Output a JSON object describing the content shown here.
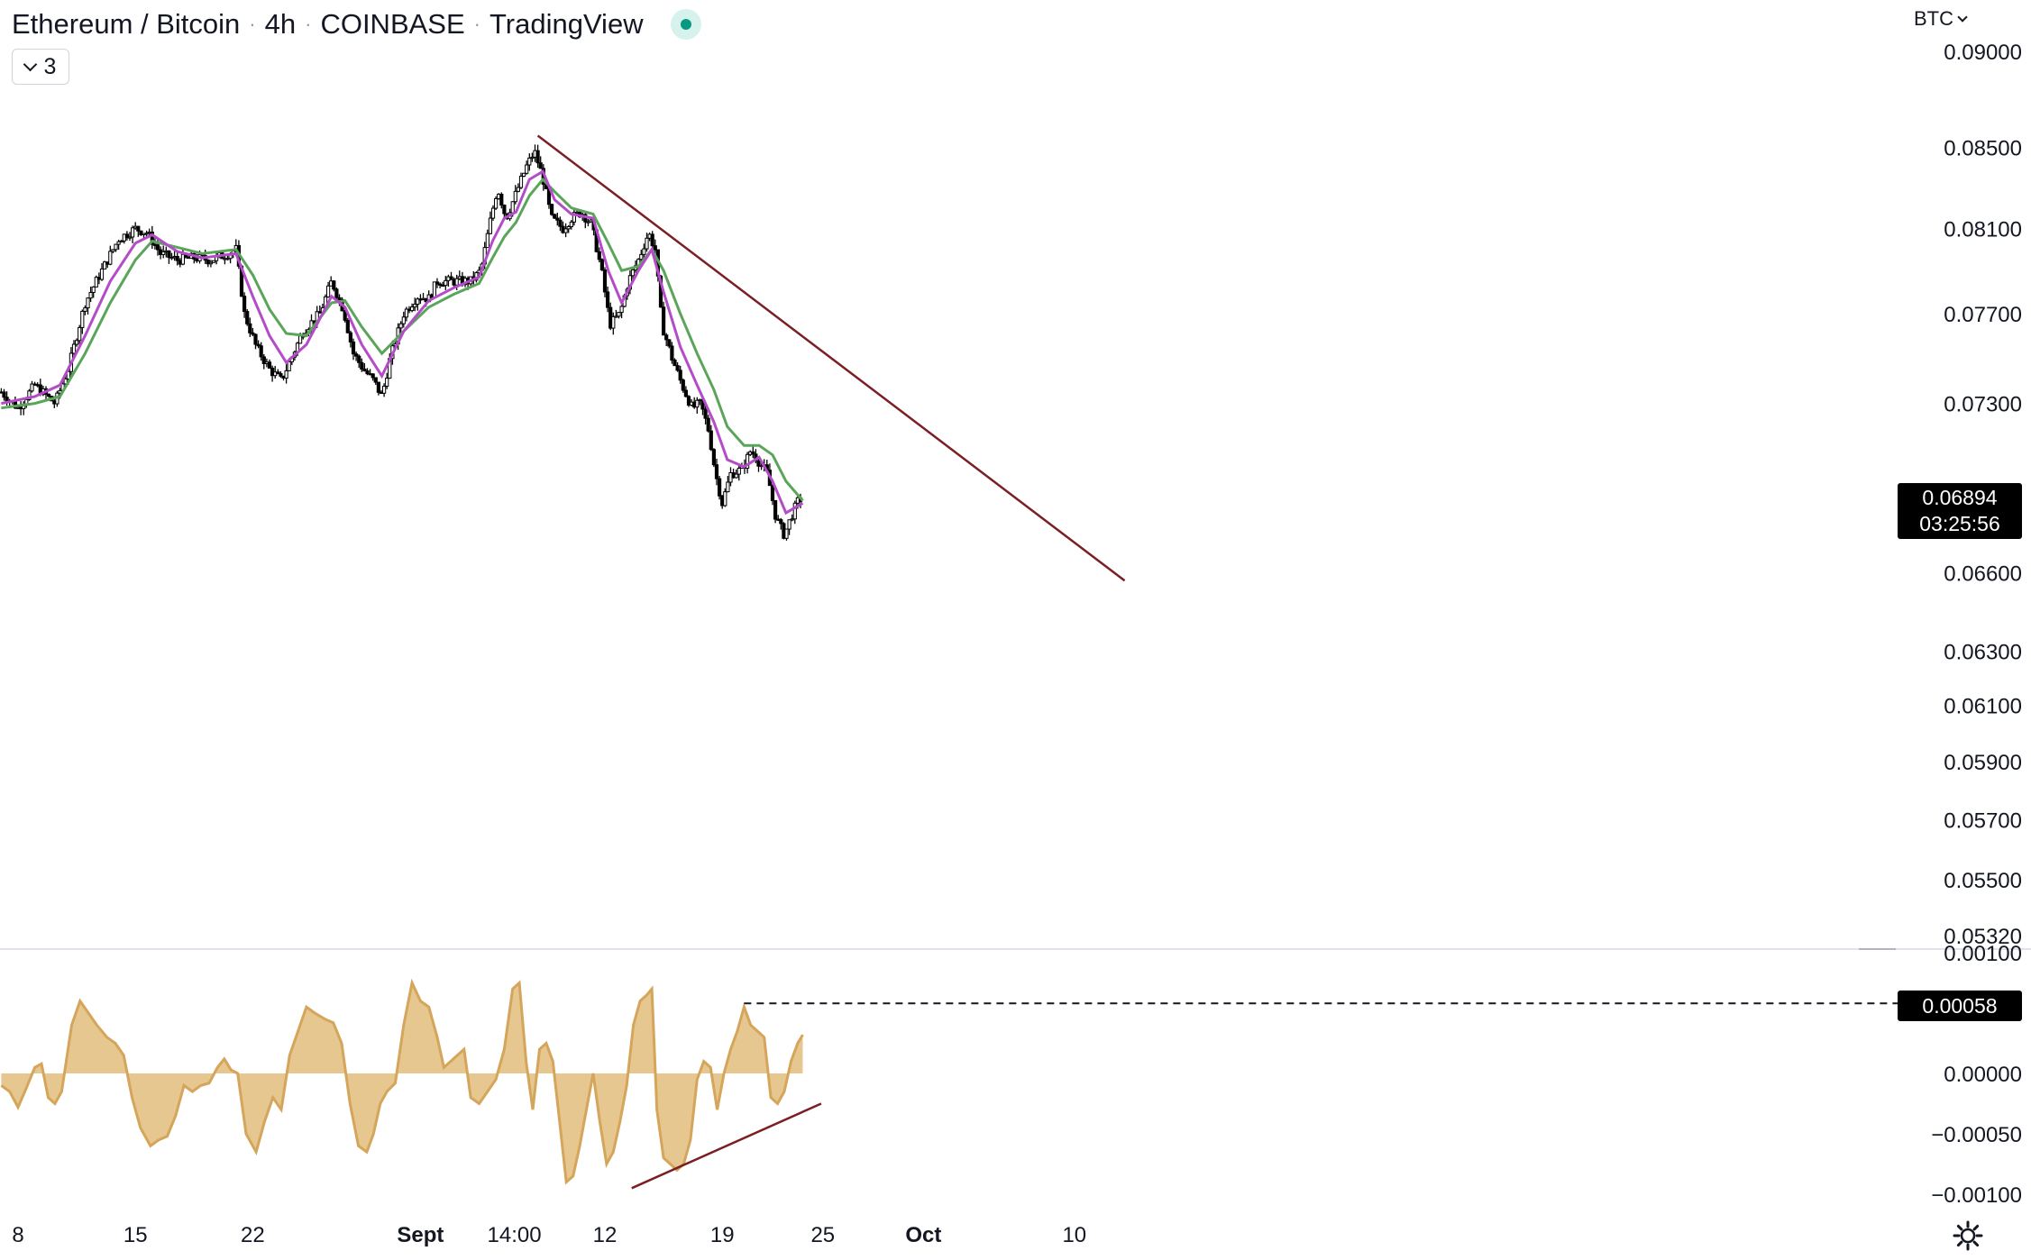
{
  "header": {
    "symbol": "Ethereum / Bitcoin",
    "interval": "4h",
    "exchange": "COINBASE",
    "source": "TradingView",
    "indicator_count": "3"
  },
  "currency_selector": "BTC",
  "last_price": {
    "value": "0.06894",
    "countdown": "03:25:56"
  },
  "oscillator_marker": "0.00058",
  "colors": {
    "candle": "#000000",
    "ema_fast": "#b44bc8",
    "ema_slow": "#5aa55a",
    "trendline": "#7b1f24",
    "oscillator_fill": "#e3c184",
    "oscillator_line": "#d4a55a",
    "live_dot": "#089981"
  },
  "chart_data": [
    {
      "type": "candlestick",
      "title": "",
      "price_axis": {
        "scale": "log",
        "ticks": [
          "0.09000",
          "0.08500",
          "0.08100",
          "0.07700",
          "0.07300",
          "0.06600",
          "0.06300",
          "0.06100",
          "0.05900",
          "0.05700",
          "0.05500",
          "0.05320"
        ]
      },
      "time_axis": {
        "range_days": [
          "Aug 7",
          "Oct 15"
        ],
        "ticks": [
          {
            "label": "8",
            "day": 8
          },
          {
            "label": "15",
            "day": 15
          },
          {
            "label": "22",
            "day": 22
          },
          {
            "label": "Sept",
            "day": 32,
            "bold": true
          },
          {
            "label": "14:00",
            "day": 37.6
          },
          {
            "label": "12",
            "day": 43
          },
          {
            "label": "19",
            "day": 50
          },
          {
            "label": "25",
            "day": 56
          },
          {
            "label": "Oct",
            "day": 62,
            "bold": true
          },
          {
            "label": "10",
            "day": 71
          }
        ]
      },
      "close_path": [
        [
          7.0,
          0.0735
        ],
        [
          8.0,
          0.0728
        ],
        [
          9.0,
          0.0738
        ],
        [
          10.2,
          0.073
        ],
        [
          11.0,
          0.0745
        ],
        [
          12.0,
          0.0775
        ],
        [
          13.0,
          0.079
        ],
        [
          14.0,
          0.0805
        ],
        [
          15.0,
          0.081
        ],
        [
          15.7,
          0.0808
        ],
        [
          16.5,
          0.0798
        ],
        [
          17.5,
          0.0795
        ],
        [
          18.5,
          0.0796
        ],
        [
          19.5,
          0.0795
        ],
        [
          20.5,
          0.0798
        ],
        [
          21.0,
          0.08
        ],
        [
          21.5,
          0.077
        ],
        [
          22.2,
          0.0755
        ],
        [
          23.0,
          0.0745
        ],
        [
          23.7,
          0.074
        ],
        [
          24.3,
          0.075
        ],
        [
          25.0,
          0.0762
        ],
        [
          26.0,
          0.077
        ],
        [
          26.7,
          0.0785
        ],
        [
          27.4,
          0.0772
        ],
        [
          28.0,
          0.0752
        ],
        [
          28.6,
          0.0745
        ],
        [
          29.2,
          0.074
        ],
        [
          29.7,
          0.0733
        ],
        [
          30.2,
          0.075
        ],
        [
          31.0,
          0.077
        ],
        [
          31.8,
          0.0778
        ],
        [
          32.5,
          0.0777
        ],
        [
          33.0,
          0.0785
        ],
        [
          34.0,
          0.0785
        ],
        [
          35.0,
          0.0785
        ],
        [
          35.6,
          0.079
        ],
        [
          36.2,
          0.0815
        ],
        [
          36.6,
          0.083
        ],
        [
          37.1,
          0.0815
        ],
        [
          37.6,
          0.0825
        ],
        [
          38.3,
          0.084
        ],
        [
          38.8,
          0.0848
        ],
        [
          39.3,
          0.0835
        ],
        [
          39.8,
          0.0815
        ],
        [
          40.5,
          0.081
        ],
        [
          41.0,
          0.0815
        ],
        [
          41.6,
          0.0818
        ],
        [
          42.2,
          0.0812
        ],
        [
          42.8,
          0.079
        ],
        [
          43.3,
          0.0765
        ],
        [
          43.9,
          0.077
        ],
        [
          44.4,
          0.0785
        ],
        [
          45.0,
          0.0795
        ],
        [
          45.6,
          0.0808
        ],
        [
          46.0,
          0.08
        ],
        [
          46.4,
          0.0765
        ],
        [
          47.0,
          0.075
        ],
        [
          47.6,
          0.0738
        ],
        [
          48.2,
          0.0728
        ],
        [
          48.7,
          0.073
        ],
        [
          49.2,
          0.0718
        ],
        [
          49.6,
          0.07
        ],
        [
          50.0,
          0.0688
        ],
        [
          50.5,
          0.07
        ],
        [
          51.2,
          0.0702
        ],
        [
          51.7,
          0.071
        ],
        [
          52.2,
          0.0705
        ],
        [
          52.7,
          0.07
        ],
        [
          53.2,
          0.0682
        ],
        [
          53.7,
          0.0675
        ],
        [
          54.2,
          0.0684
        ],
        [
          54.6,
          0.069
        ],
        [
          54.8,
          0.0689
        ]
      ],
      "ema_fast_path": [
        [
          7.0,
          0.073
        ],
        [
          9.0,
          0.0733
        ],
        [
          10.5,
          0.0738
        ],
        [
          12.0,
          0.076
        ],
        [
          13.5,
          0.0785
        ],
        [
          15.0,
          0.0803
        ],
        [
          16.0,
          0.0807
        ],
        [
          17.5,
          0.0799
        ],
        [
          19.0,
          0.0796
        ],
        [
          21.0,
          0.0798
        ],
        [
          22.0,
          0.0778
        ],
        [
          23.0,
          0.076
        ],
        [
          24.0,
          0.0748
        ],
        [
          25.2,
          0.0756
        ],
        [
          26.7,
          0.0778
        ],
        [
          27.5,
          0.0773
        ],
        [
          28.5,
          0.0756
        ],
        [
          29.7,
          0.0742
        ],
        [
          31.0,
          0.0762
        ],
        [
          32.5,
          0.0776
        ],
        [
          34.0,
          0.0782
        ],
        [
          35.5,
          0.0787
        ],
        [
          36.3,
          0.0804
        ],
        [
          37.0,
          0.0815
        ],
        [
          37.7,
          0.0818
        ],
        [
          38.5,
          0.0834
        ],
        [
          39.3,
          0.0838
        ],
        [
          40.0,
          0.0824
        ],
        [
          41.0,
          0.0817
        ],
        [
          42.3,
          0.0815
        ],
        [
          43.2,
          0.079
        ],
        [
          44.0,
          0.0775
        ],
        [
          45.0,
          0.079
        ],
        [
          45.8,
          0.08
        ],
        [
          46.5,
          0.078
        ],
        [
          47.5,
          0.0755
        ],
        [
          48.5,
          0.0738
        ],
        [
          49.5,
          0.0722
        ],
        [
          50.3,
          0.0706
        ],
        [
          51.3,
          0.0703
        ],
        [
          52.2,
          0.0707
        ],
        [
          53.0,
          0.0697
        ],
        [
          53.8,
          0.0684
        ],
        [
          54.8,
          0.0688
        ]
      ],
      "ema_slow_path": [
        [
          7.0,
          0.0728
        ],
        [
          9.0,
          0.073
        ],
        [
          10.5,
          0.0733
        ],
        [
          12.0,
          0.0752
        ],
        [
          13.5,
          0.0775
        ],
        [
          15.0,
          0.0795
        ],
        [
          16.0,
          0.0804
        ],
        [
          17.5,
          0.0801
        ],
        [
          19.0,
          0.0798
        ],
        [
          21.0,
          0.08
        ],
        [
          22.0,
          0.0788
        ],
        [
          23.0,
          0.0772
        ],
        [
          24.0,
          0.0761
        ],
        [
          25.2,
          0.076
        ],
        [
          26.7,
          0.0775
        ],
        [
          27.5,
          0.0776
        ],
        [
          28.5,
          0.0764
        ],
        [
          29.7,
          0.0752
        ],
        [
          31.0,
          0.0762
        ],
        [
          32.5,
          0.0773
        ],
        [
          34.0,
          0.0779
        ],
        [
          35.5,
          0.0784
        ],
        [
          36.3,
          0.0796
        ],
        [
          37.0,
          0.0806
        ],
        [
          37.7,
          0.0813
        ],
        [
          38.5,
          0.0826
        ],
        [
          39.3,
          0.0834
        ],
        [
          40.0,
          0.0828
        ],
        [
          41.0,
          0.082
        ],
        [
          42.3,
          0.0817
        ],
        [
          43.2,
          0.0803
        ],
        [
          44.0,
          0.079
        ],
        [
          45.0,
          0.0792
        ],
        [
          45.8,
          0.08
        ],
        [
          46.5,
          0.079
        ],
        [
          47.5,
          0.077
        ],
        [
          48.5,
          0.0752
        ],
        [
          49.5,
          0.0736
        ],
        [
          50.3,
          0.072
        ],
        [
          51.3,
          0.0712
        ],
        [
          52.2,
          0.0712
        ],
        [
          53.0,
          0.0708
        ],
        [
          53.8,
          0.0697
        ],
        [
          54.8,
          0.0689
        ]
      ],
      "trendline": {
        "start": [
          39.0,
          0.0856
        ],
        "end": [
          74.0,
          0.0657
        ]
      }
    },
    {
      "type": "area",
      "title": "",
      "axis": {
        "ticks": [
          "0.00100",
          "0.00000",
          "−0.00050",
          "−0.00100"
        ],
        "range": [
          -0.00105,
          0.00105
        ]
      },
      "marker_value": 0.00058,
      "path": [
        [
          7.0,
          -0.0001
        ],
        [
          7.5,
          -0.00015
        ],
        [
          8.0,
          -0.00028
        ],
        [
          8.5,
          -0.00012
        ],
        [
          9.0,
          5e-05
        ],
        [
          9.4,
          8e-05
        ],
        [
          9.8,
          -0.0002
        ],
        [
          10.2,
          -0.00025
        ],
        [
          10.6,
          -0.00015
        ],
        [
          11.2,
          0.0004
        ],
        [
          11.7,
          0.0006
        ],
        [
          12.2,
          0.0005
        ],
        [
          12.7,
          0.0004
        ],
        [
          13.3,
          0.0003
        ],
        [
          13.8,
          0.00025
        ],
        [
          14.3,
          0.00015
        ],
        [
          14.8,
          -0.0002
        ],
        [
          15.3,
          -0.00045
        ],
        [
          15.9,
          -0.0006
        ],
        [
          16.4,
          -0.00055
        ],
        [
          16.9,
          -0.00052
        ],
        [
          17.4,
          -0.00035
        ],
        [
          17.9,
          -0.0001
        ],
        [
          18.4,
          -0.00015
        ],
        [
          18.9,
          -0.0001
        ],
        [
          19.4,
          -8e-05
        ],
        [
          19.9,
          5e-05
        ],
        [
          20.3,
          0.00012
        ],
        [
          20.7,
          3e-05
        ],
        [
          21.1,
          0.0
        ],
        [
          21.6,
          -0.0005
        ],
        [
          22.2,
          -0.00065
        ],
        [
          22.7,
          -0.0004
        ],
        [
          23.2,
          -0.0002
        ],
        [
          23.7,
          -0.0003
        ],
        [
          24.2,
          0.00015
        ],
        [
          24.7,
          0.00035
        ],
        [
          25.2,
          0.00055
        ],
        [
          25.7,
          0.0005
        ],
        [
          26.3,
          0.00045
        ],
        [
          26.8,
          0.00042
        ],
        [
          27.3,
          0.00025
        ],
        [
          27.8,
          -0.00025
        ],
        [
          28.3,
          -0.0006
        ],
        [
          28.8,
          -0.00065
        ],
        [
          29.2,
          -0.0005
        ],
        [
          29.6,
          -0.00025
        ],
        [
          30.0,
          -0.00015
        ],
        [
          30.5,
          -8e-05
        ],
        [
          31.0,
          0.0004
        ],
        [
          31.5,
          0.00075
        ],
        [
          32.0,
          0.0006
        ],
        [
          32.5,
          0.00055
        ],
        [
          33.0,
          0.0003
        ],
        [
          33.4,
          5e-05
        ],
        [
          33.8,
          0.0001
        ],
        [
          34.2,
          0.00015
        ],
        [
          34.6,
          0.0002
        ],
        [
          35.0,
          -0.0002
        ],
        [
          35.5,
          -0.00025
        ],
        [
          36.0,
          -0.00015
        ],
        [
          36.5,
          -5e-05
        ],
        [
          37.0,
          0.0002
        ],
        [
          37.5,
          0.0007
        ],
        [
          37.9,
          0.00075
        ],
        [
          38.3,
          0.0001
        ],
        [
          38.7,
          -0.0003
        ],
        [
          39.1,
          0.0002
        ],
        [
          39.5,
          0.00025
        ],
        [
          39.9,
          0.0001
        ],
        [
          40.3,
          -0.0004
        ],
        [
          40.7,
          -0.0009
        ],
        [
          41.1,
          -0.00085
        ],
        [
          41.5,
          -0.0006
        ],
        [
          41.9,
          -0.0003
        ],
        [
          42.3,
          0.0
        ],
        [
          42.7,
          -0.0004
        ],
        [
          43.1,
          -0.00075
        ],
        [
          43.5,
          -0.00065
        ],
        [
          43.9,
          -0.0004
        ],
        [
          44.3,
          -0.0001
        ],
        [
          44.7,
          0.0004
        ],
        [
          45.1,
          0.0006
        ],
        [
          45.5,
          0.00065
        ],
        [
          45.8,
          0.0007
        ],
        [
          46.1,
          -0.0003
        ],
        [
          46.5,
          -0.0007
        ],
        [
          46.9,
          -0.00075
        ],
        [
          47.3,
          -0.0008
        ],
        [
          47.7,
          -0.00075
        ],
        [
          48.1,
          -0.00055
        ],
        [
          48.5,
          -5e-05
        ],
        [
          48.9,
          0.0001
        ],
        [
          49.3,
          5e-05
        ],
        [
          49.7,
          -0.0003
        ],
        [
          50.1,
          0.0
        ],
        [
          50.5,
          0.0002
        ],
        [
          50.9,
          0.00035
        ],
        [
          51.3,
          0.00055
        ],
        [
          51.7,
          0.0004
        ],
        [
          52.1,
          0.00035
        ],
        [
          52.5,
          0.0003
        ],
        [
          52.9,
          -0.0002
        ],
        [
          53.3,
          -0.00025
        ],
        [
          53.7,
          -0.00015
        ],
        [
          54.1,
          0.0001
        ],
        [
          54.5,
          0.00025
        ],
        [
          54.8,
          0.00032
        ]
      ],
      "trendline": {
        "start": [
          44.6,
          -0.00095
        ],
        "end": [
          55.9,
          -0.00025
        ]
      }
    }
  ]
}
